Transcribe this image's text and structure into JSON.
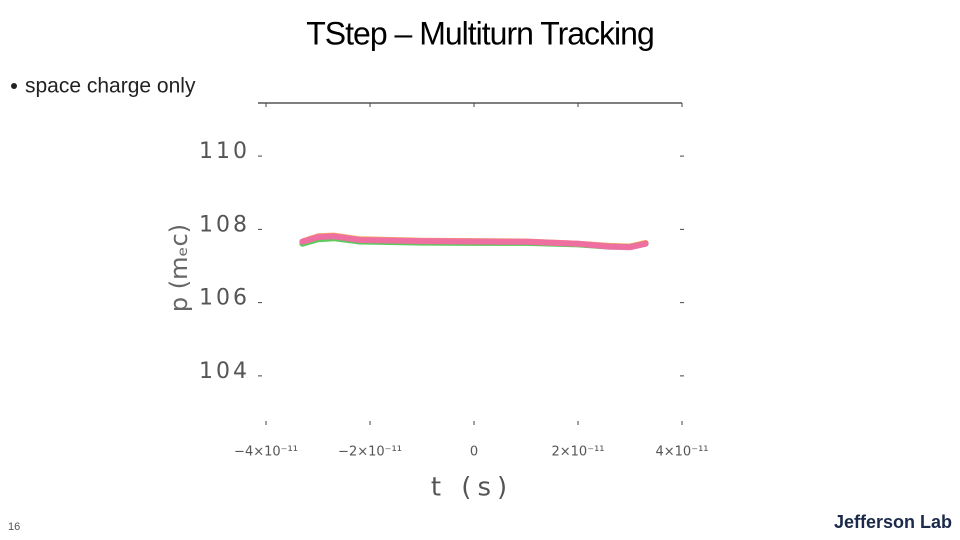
{
  "slide": {
    "title": "TStep – Multiturn Tracking",
    "bullet": "space charge only",
    "page_number": "16",
    "logo": "Jefferson Lab"
  },
  "chart_data": {
    "type": "line",
    "xlabel": "t (s)",
    "ylabel": "p (mₑc)",
    "x": [
      -3.3e-11,
      -3e-11,
      -2.7e-11,
      -2.2e-11,
      -1e-11,
      0,
      1e-11,
      2e-11,
      2.6e-11,
      3e-11,
      3.3e-11
    ],
    "series": [
      {
        "color": "#4cc44c",
        "values": [
          107.5,
          107.62,
          107.65,
          107.56,
          107.53,
          107.52,
          107.52,
          107.48,
          107.42,
          107.42,
          107.5
        ]
      },
      {
        "color": "#f0a050",
        "values": [
          107.56,
          107.7,
          107.72,
          107.62,
          107.58,
          107.57,
          107.56,
          107.5,
          107.44,
          107.42,
          107.52
        ]
      },
      {
        "color": "#f06aa8",
        "values": [
          107.55,
          107.68,
          107.7,
          107.6,
          107.57,
          107.56,
          107.55,
          107.5,
          107.42,
          107.4,
          107.5
        ]
      }
    ],
    "xlim": [
      -4e-11,
      4e-11
    ],
    "ylim": [
      102.55,
      111.34
    ],
    "xticks": [
      {
        "value": -4e-11,
        "label": "−4×10⁻¹¹"
      },
      {
        "value": -2e-11,
        "label": "−2×10⁻¹¹"
      },
      0,
      {
        "value": 2e-11,
        "label": "2×10⁻¹¹"
      },
      {
        "value": 4e-11,
        "label": "4×10⁻¹¹"
      }
    ],
    "yticks": [
      104,
      106,
      108,
      110
    ]
  }
}
